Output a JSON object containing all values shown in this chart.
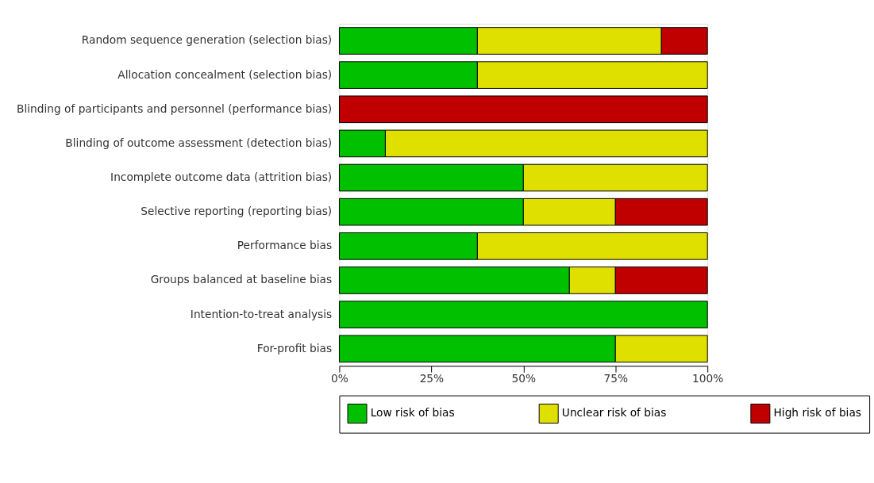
{
  "chart_data": {
    "type": "bar",
    "orientation": "horizontal",
    "stacked": true,
    "categories": [
      "Random sequence generation (selection bias)",
      "Allocation concealment (selection bias)",
      "Blinding of participants and personnel (performance bias)",
      "Blinding of outcome assessment (detection bias)",
      "Incomplete outcome data (attrition bias)",
      "Selective reporting (reporting bias)",
      "Performance bias",
      "Groups balanced at baseline bias",
      "Intention-to-treat analysis",
      "For-profit bias"
    ],
    "series": [
      {
        "name": "Low risk of bias",
        "color": "#00c000",
        "values": [
          37.5,
          37.5,
          null,
          12.5,
          50,
          50,
          37.5,
          62.5,
          100,
          75
        ]
      },
      {
        "name": "Unclear risk of bias",
        "color": "#e0e000",
        "values": [
          50,
          62.5,
          null,
          87.5,
          50,
          25,
          62.5,
          12.5,
          null,
          25
        ]
      },
      {
        "name": "High risk of bias",
        "color": "#c00000",
        "values": [
          12.5,
          null,
          100,
          null,
          null,
          25,
          null,
          25,
          null,
          null
        ]
      }
    ],
    "xlim": [
      0,
      100
    ],
    "xticks": [
      {
        "value": 0,
        "label": "0%"
      },
      {
        "value": 25,
        "label": "25%"
      },
      {
        "value": 50,
        "label": "50%"
      },
      {
        "value": 75,
        "label": "75%"
      },
      {
        "value": 100,
        "label": "100%"
      }
    ],
    "grid": false,
    "legend": "bottom"
  }
}
